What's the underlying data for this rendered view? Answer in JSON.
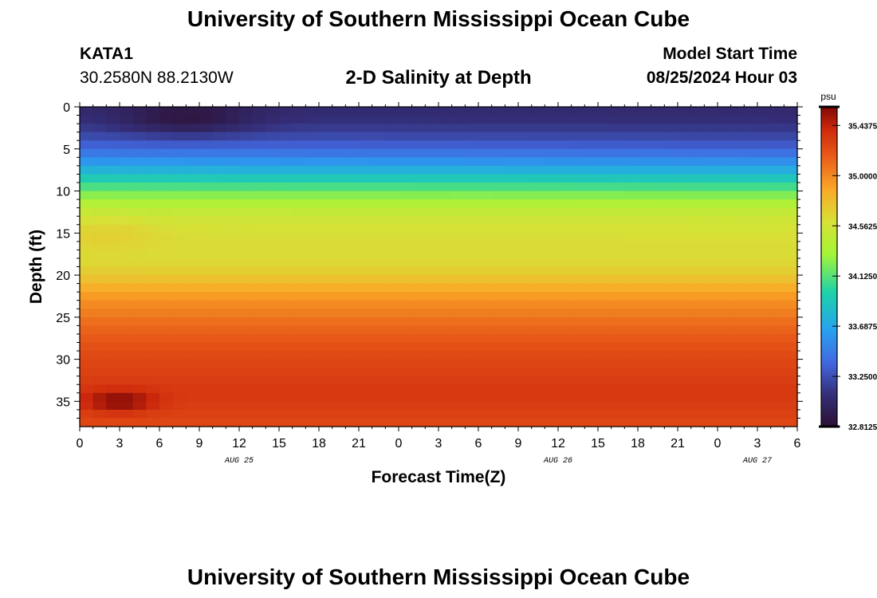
{
  "header": {
    "title": "University of Southern Mississippi Ocean Cube",
    "station": "KATA1",
    "coords": "30.2580N  88.2130W",
    "subtitle": "2-D Salinity at Depth",
    "model_start_label": "Model Start Time",
    "model_start_value": "08/25/2024 Hour 03"
  },
  "footer": {
    "title": "University of Southern Mississippi Ocean Cube"
  },
  "chart_data": {
    "type": "heatmap",
    "title": "2-D Salinity at Depth",
    "xlabel": "Forecast Time(Z)",
    "ylabel": "Depth (ft)",
    "x_range_hours": [
      0,
      54
    ],
    "y_range": [
      0,
      38
    ],
    "y_ticks": [
      0,
      5,
      10,
      15,
      20,
      25,
      30,
      35
    ],
    "x_tick_labels": [
      "0",
      "3",
      "6",
      "9",
      "12",
      "15",
      "18",
      "21",
      "0",
      "3",
      "6",
      "9",
      "12",
      "15",
      "18",
      "21",
      "0",
      "3",
      "6"
    ],
    "date_labels": [
      {
        "hour": 12,
        "label": "AUG 25"
      },
      {
        "hour": 36,
        "label": "AUG 26"
      },
      {
        "hour": 51,
        "label": "AUG 27"
      }
    ],
    "colorbar": {
      "unit": "psu",
      "min": 32.8125,
      "max": 35.6,
      "tick_labels": [
        "32.8125",
        "33.2500",
        "33.6875",
        "34.1250",
        "34.5625",
        "35.0000",
        "35.4375"
      ]
    },
    "depth_profile": {
      "depth_ft": [
        0,
        2,
        4,
        6,
        8,
        10,
        12,
        14,
        16,
        18,
        20,
        22,
        24,
        26,
        28,
        30,
        32,
        34,
        36,
        38
      ],
      "salinity_psu": [
        33.05,
        33.12,
        33.28,
        33.52,
        33.85,
        34.18,
        34.46,
        34.58,
        34.62,
        34.62,
        34.72,
        34.9,
        35.02,
        35.12,
        35.2,
        35.26,
        35.3,
        35.33,
        35.3,
        35.25
      ]
    },
    "anomalies": [
      {
        "hour": 8,
        "depth_ft": 1.5,
        "delta": -0.22,
        "hour_spread": 5,
        "depth_spread": 2
      },
      {
        "hour": 3,
        "depth_ft": 35,
        "delta": 0.28,
        "hour_spread": 2.5,
        "depth_spread": 1.2
      },
      {
        "hour": 2,
        "depth_ft": 15,
        "delta": 0.08,
        "hour_spread": 4,
        "depth_spread": 2
      }
    ]
  }
}
